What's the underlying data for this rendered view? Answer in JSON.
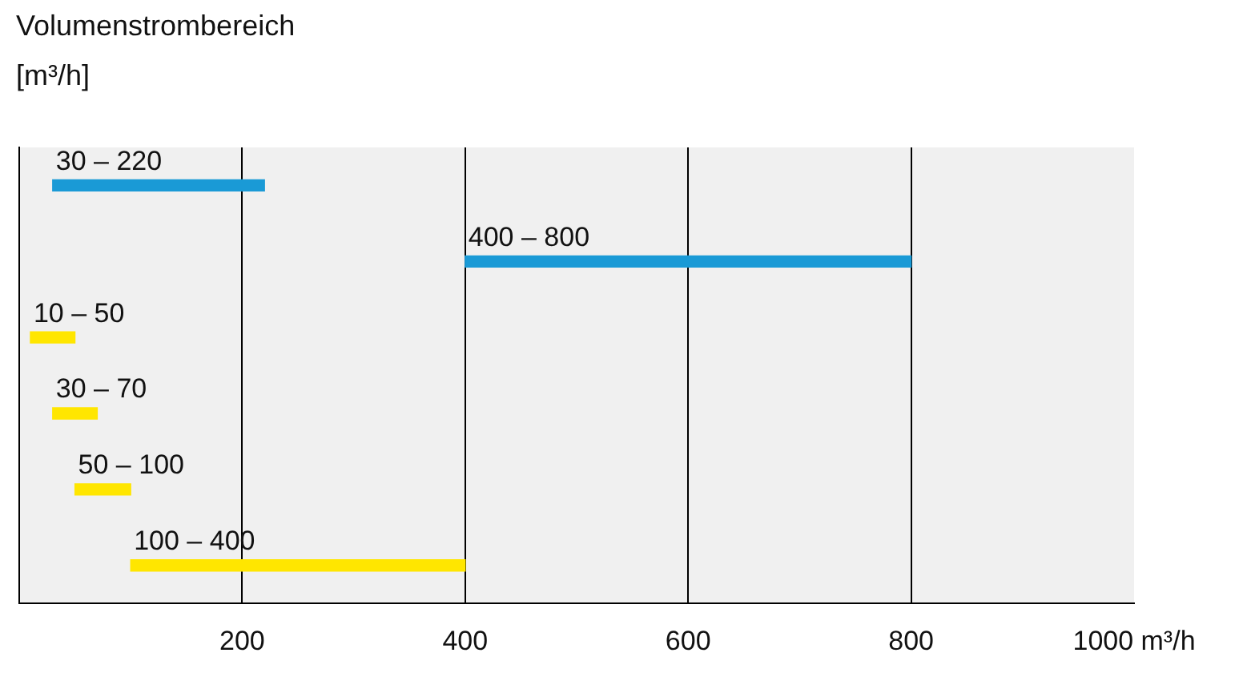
{
  "chart_data": {
    "type": "bar",
    "orientation": "horizontal",
    "title": "Volumenstrombereich",
    "subtitle": "[m³/h]",
    "categories": [
      null,
      null,
      null,
      null,
      null,
      null
    ],
    "base": [
      30,
      400,
      10,
      30,
      50,
      100
    ],
    "values": [
      190,
      400,
      40,
      40,
      50,
      300
    ],
    "colors": [
      "#1a9ad6",
      "#1a9ad6",
      "#ffe600",
      "#ffe600",
      "#ffe600",
      "#ffe600"
    ],
    "annotations": [
      "30 – 220",
      "400 – 800",
      "10 – 50",
      "30 – 70",
      "50 – 100",
      "100 – 400"
    ],
    "xlim": [
      0,
      1000
    ],
    "xticks": [
      200,
      400,
      600,
      800,
      {
        "value": 1000,
        "label": "1000 m³/h"
      }
    ],
    "grid": "x",
    "legend": false
  }
}
